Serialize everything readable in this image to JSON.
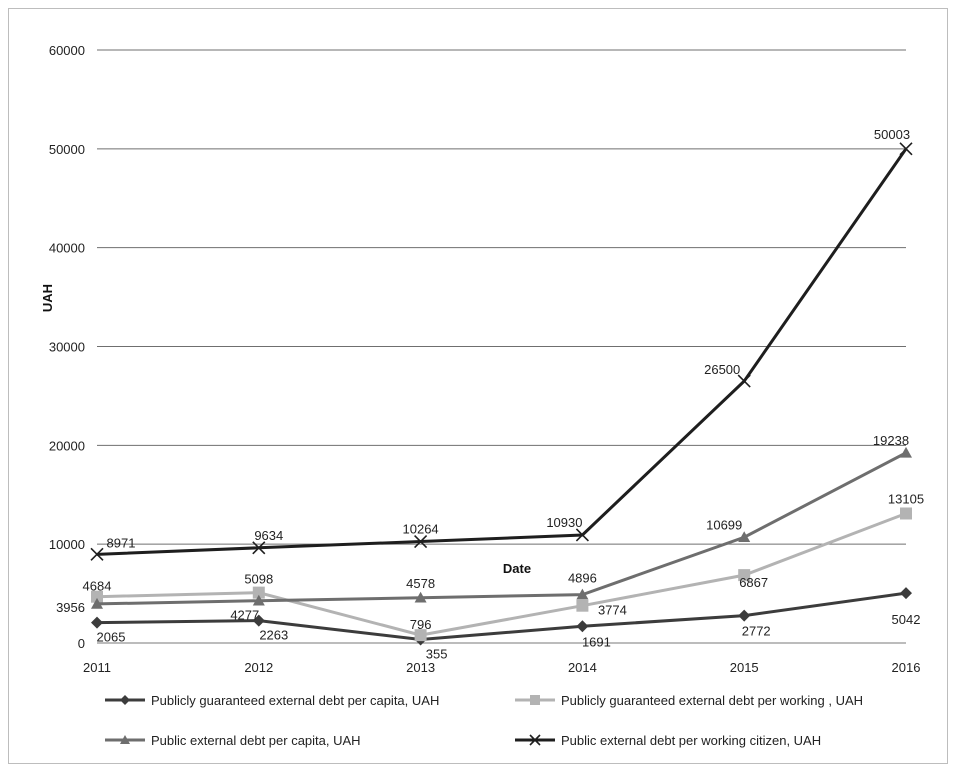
{
  "chart_data": {
    "type": "line",
    "xlabel": "Date",
    "ylabel": "UAH",
    "ylim": [
      0,
      60000
    ],
    "yticks": [
      0,
      10000,
      20000,
      30000,
      40000,
      50000,
      60000
    ],
    "categories": [
      "2011",
      "2012",
      "2013",
      "2014",
      "2015",
      "2016"
    ],
    "grid": true,
    "legend_position": "bottom",
    "series": [
      {
        "name": "Publicly guaranteed external debt per capita, UAH",
        "values": [
          2065,
          2263,
          355,
          1691,
          2772,
          5042
        ],
        "color": "#3c3c3c",
        "marker": "diamond"
      },
      {
        "name": "Publicly guaranteed external debt per working , UAH",
        "values": [
          4684,
          5098,
          796,
          3774,
          6867,
          13105
        ],
        "color": "#b3b3b3",
        "marker": "square"
      },
      {
        "name": "Public external debt per capita, UAH",
        "values": [
          3956,
          4277,
          4578,
          4896,
          10699,
          19238
        ],
        "color": "#6e6e6e",
        "marker": "triangle"
      },
      {
        "name": "Public external debt per working citizen, UAH",
        "values": [
          8971,
          9634,
          10264,
          10930,
          26500,
          50003
        ],
        "color": "#1e1e1e",
        "marker": "x"
      }
    ]
  }
}
